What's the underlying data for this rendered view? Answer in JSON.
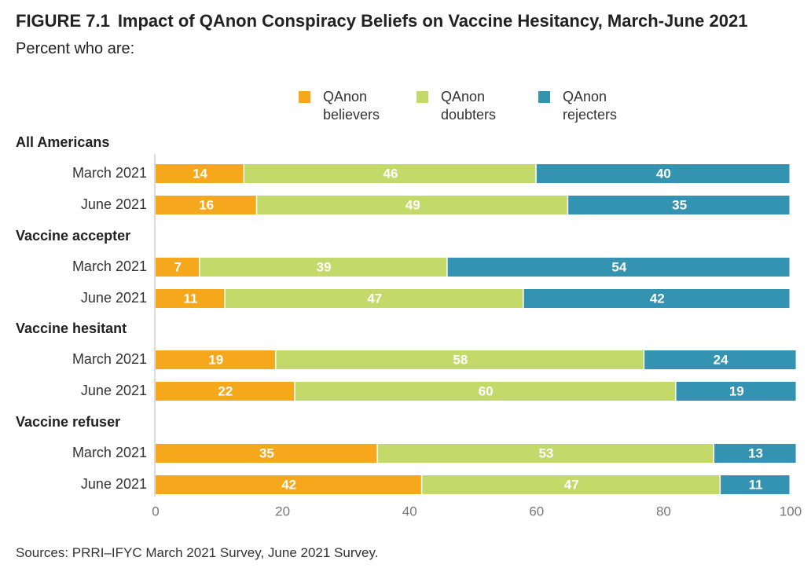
{
  "figure_label": "FIGURE 7.1",
  "title": "Impact of QAnon Conspiracy Beliefs on Vaccine Hesitancy, March-June 2021",
  "subtitle": "Percent who are:",
  "source": "Sources: PRRI–IFYC March 2021 Survey, June 2021 Survey.",
  "legend": [
    {
      "line1": "QAnon",
      "line2": "believers",
      "color": "#F5A81C"
    },
    {
      "line1": "QAnon",
      "line2": "doubters",
      "color": "#C3D96A"
    },
    {
      "line1": "QAnon",
      "line2": "rejecters",
      "color": "#3393B0"
    }
  ],
  "chart_data": {
    "type": "bar",
    "orientation": "horizontal",
    "stacked": true,
    "xlim": [
      0,
      100
    ],
    "xticks": [
      0,
      20,
      40,
      60,
      80,
      100
    ],
    "grid": false,
    "legend_position": "top",
    "series_names": [
      "QAnon believers",
      "QAnon doubters",
      "QAnon rejecters"
    ],
    "groups": [
      {
        "name": "All Americans",
        "rows": [
          {
            "label": "March 2021",
            "values": [
              14,
              46,
              40
            ]
          },
          {
            "label": "June 2021",
            "values": [
              16,
              49,
              35
            ]
          }
        ]
      },
      {
        "name": "Vaccine accepter",
        "rows": [
          {
            "label": "March 2021",
            "values": [
              7,
              39,
              54
            ]
          },
          {
            "label": "June 2021",
            "values": [
              11,
              47,
              42
            ]
          }
        ]
      },
      {
        "name": "Vaccine hesitant",
        "rows": [
          {
            "label": "March 2021",
            "values": [
              19,
              58,
              24
            ]
          },
          {
            "label": "June 2021",
            "values": [
              22,
              60,
              19
            ]
          }
        ]
      },
      {
        "name": "Vaccine refuser",
        "rows": [
          {
            "label": "March 2021",
            "values": [
              35,
              53,
              13
            ]
          },
          {
            "label": "June 2021",
            "values": [
              42,
              47,
              11
            ]
          }
        ]
      }
    ]
  }
}
